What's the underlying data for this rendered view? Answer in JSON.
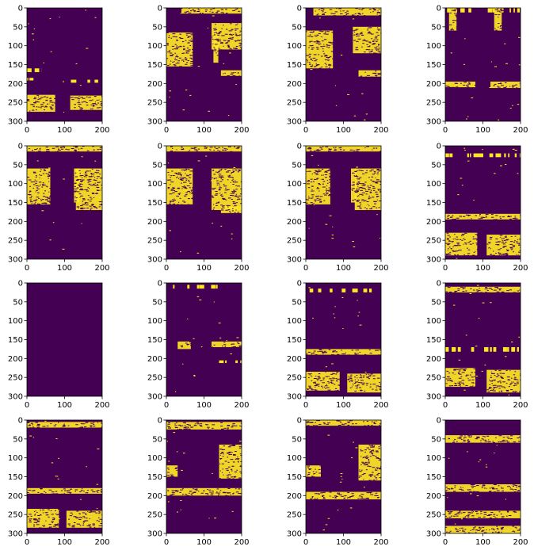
{
  "figure": {
    "background": "#ffffff",
    "colors": {
      "background": "#440154",
      "foreground": "#fde725"
    },
    "colormap": "viridis (binary mask)",
    "layout": "4 rows x 4 columns grid of masks"
  },
  "chart_data": [
    {
      "type": "heatmap",
      "row": 1,
      "col": 1,
      "xlim": [
        0,
        200
      ],
      "ylim": [
        300,
        0
      ],
      "xticks": [
        0,
        100,
        200
      ],
      "yticks": [
        0,
        50,
        100,
        150,
        200,
        250,
        300
      ],
      "mask_regions": [
        {
          "x": [
            0,
            75
          ],
          "y": [
            230,
            275
          ]
        },
        {
          "x": [
            115,
            200
          ],
          "y": [
            232,
            270
          ]
        },
        {
          "x": [
            0,
            40
          ],
          "y": [
            160,
            170
          ]
        },
        {
          "x": [
            0,
            45
          ],
          "y": [
            185,
            192
          ]
        },
        {
          "x": [
            90,
            190
          ],
          "y": [
            190,
            198
          ]
        }
      ]
    },
    {
      "type": "heatmap",
      "row": 1,
      "col": 2,
      "xlim": [
        0,
        200
      ],
      "ylim": [
        300,
        0
      ],
      "xticks": [
        0,
        100,
        200
      ],
      "yticks": [
        0,
        50,
        100,
        150,
        200,
        250,
        300
      ],
      "mask_regions": [
        {
          "x": [
            0,
            70
          ],
          "y": [
            65,
            155
          ]
        },
        {
          "x": [
            40,
            200
          ],
          "y": [
            0,
            15
          ]
        },
        {
          "x": [
            120,
            200
          ],
          "y": [
            40,
            110
          ]
        },
        {
          "x": [
            145,
            200
          ],
          "y": [
            165,
            180
          ]
        },
        {
          "x": [
            125,
            138
          ],
          "y": [
            60,
            145
          ]
        }
      ]
    },
    {
      "type": "heatmap",
      "row": 1,
      "col": 3,
      "xlim": [
        0,
        200
      ],
      "ylim": [
        300,
        0
      ],
      "xticks": [
        0,
        100,
        200
      ],
      "yticks": [
        0,
        50,
        100,
        150,
        200,
        250,
        300
      ],
      "mask_regions": [
        {
          "x": [
            0,
            72
          ],
          "y": [
            60,
            160
          ]
        },
        {
          "x": [
            20,
            200
          ],
          "y": [
            0,
            20
          ]
        },
        {
          "x": [
            125,
            200
          ],
          "y": [
            50,
            120
          ]
        },
        {
          "x": [
            140,
            200
          ],
          "y": [
            165,
            182
          ]
        }
      ]
    },
    {
      "type": "heatmap",
      "row": 1,
      "col": 4,
      "xlim": [
        0,
        200
      ],
      "ylim": [
        300,
        0
      ],
      "xticks": [
        0,
        100,
        200
      ],
      "yticks": [
        0,
        50,
        100,
        150,
        200,
        250,
        300
      ],
      "mask_regions": [
        {
          "x": [
            0,
            200
          ],
          "y": [
            0,
            12
          ]
        },
        {
          "x": [
            10,
            30
          ],
          "y": [
            0,
            60
          ]
        },
        {
          "x": [
            130,
            150
          ],
          "y": [
            0,
            60
          ]
        },
        {
          "x": [
            0,
            80
          ],
          "y": [
            195,
            210
          ]
        },
        {
          "x": [
            120,
            200
          ],
          "y": [
            195,
            212
          ]
        }
      ]
    },
    {
      "type": "heatmap",
      "row": 2,
      "col": 1,
      "xlim": [
        0,
        200
      ],
      "ylim": [
        300,
        0
      ],
      "xticks": [
        0,
        100,
        200
      ],
      "yticks": [
        0,
        50,
        100,
        150,
        200,
        250,
        300
      ],
      "mask_regions": [
        {
          "x": [
            0,
            62
          ],
          "y": [
            60,
            155
          ]
        },
        {
          "x": [
            0,
            200
          ],
          "y": [
            0,
            15
          ]
        },
        {
          "x": [
            130,
            200
          ],
          "y": [
            60,
            170
          ]
        },
        {
          "x": [
            125,
            140
          ],
          "y": [
            60,
            150
          ]
        }
      ]
    },
    {
      "type": "heatmap",
      "row": 2,
      "col": 2,
      "xlim": [
        0,
        200
      ],
      "ylim": [
        300,
        0
      ],
      "xticks": [
        0,
        100,
        200
      ],
      "yticks": [
        0,
        50,
        100,
        150,
        200,
        250,
        300
      ],
      "mask_regions": [
        {
          "x": [
            0,
            70
          ],
          "y": [
            60,
            155
          ]
        },
        {
          "x": [
            0,
            200
          ],
          "y": [
            0,
            15
          ]
        },
        {
          "x": [
            120,
            200
          ],
          "y": [
            60,
            170
          ]
        },
        {
          "x": [
            145,
            200
          ],
          "y": [
            160,
            178
          ]
        }
      ]
    },
    {
      "type": "heatmap",
      "row": 2,
      "col": 3,
      "xlim": [
        0,
        200
      ],
      "ylim": [
        300,
        0
      ],
      "xticks": [
        0,
        100,
        200
      ],
      "yticks": [
        0,
        50,
        100,
        150,
        200,
        250,
        300
      ],
      "mask_regions": [
        {
          "x": [
            0,
            65
          ],
          "y": [
            60,
            155
          ]
        },
        {
          "x": [
            0,
            200
          ],
          "y": [
            0,
            15
          ]
        },
        {
          "x": [
            130,
            200
          ],
          "y": [
            60,
            170
          ]
        },
        {
          "x": [
            120,
            135
          ],
          "y": [
            60,
            150
          ]
        }
      ]
    },
    {
      "type": "heatmap",
      "row": 2,
      "col": 4,
      "xlim": [
        0,
        200
      ],
      "ylim": [
        300,
        0
      ],
      "xticks": [
        0,
        100,
        200
      ],
      "yticks": [
        0,
        50,
        100,
        150,
        200,
        250,
        300
      ],
      "mask_regions": [
        {
          "x": [
            0,
            85
          ],
          "y": [
            230,
            290
          ]
        },
        {
          "x": [
            110,
            200
          ],
          "y": [
            235,
            290
          ]
        },
        {
          "x": [
            0,
            200
          ],
          "y": [
            180,
            195
          ]
        },
        {
          "x": [
            0,
            200
          ],
          "y": [
            20,
            30
          ]
        }
      ]
    },
    {
      "type": "heatmap",
      "row": 3,
      "col": 1,
      "xlim": [
        0,
        200
      ],
      "ylim": [
        300,
        0
      ],
      "xticks": [
        0,
        100,
        200
      ],
      "yticks": [
        0,
        50,
        100,
        150,
        200,
        250,
        300
      ],
      "mask_regions": []
    },
    {
      "type": "heatmap",
      "row": 3,
      "col": 2,
      "xlim": [
        0,
        200
      ],
      "ylim": [
        300,
        0
      ],
      "xticks": [
        0,
        100,
        200
      ],
      "yticks": [
        0,
        50,
        100,
        150,
        200,
        250,
        300
      ],
      "mask_regions": [
        {
          "x": [
            0,
            140
          ],
          "y": [
            5,
            15
          ]
        },
        {
          "x": [
            30,
            65
          ],
          "y": [
            155,
            175
          ]
        },
        {
          "x": [
            120,
            200
          ],
          "y": [
            155,
            170
          ]
        },
        {
          "x": [
            140,
            200
          ],
          "y": [
            205,
            212
          ]
        }
      ]
    },
    {
      "type": "heatmap",
      "row": 3,
      "col": 3,
      "xlim": [
        0,
        200
      ],
      "ylim": [
        300,
        0
      ],
      "xticks": [
        0,
        100,
        200
      ],
      "yticks": [
        0,
        50,
        100,
        150,
        200,
        250,
        300
      ],
      "mask_regions": [
        {
          "x": [
            0,
            90
          ],
          "y": [
            235,
            285
          ]
        },
        {
          "x": [
            110,
            200
          ],
          "y": [
            240,
            290
          ]
        },
        {
          "x": [
            0,
            200
          ],
          "y": [
            175,
            190
          ]
        },
        {
          "x": [
            0,
            200
          ],
          "y": [
            15,
            25
          ]
        }
      ]
    },
    {
      "type": "heatmap",
      "row": 3,
      "col": 4,
      "xlim": [
        0,
        200
      ],
      "ylim": [
        300,
        0
      ],
      "xticks": [
        0,
        100,
        200
      ],
      "yticks": [
        0,
        50,
        100,
        150,
        200,
        250,
        300
      ],
      "mask_regions": [
        {
          "x": [
            0,
            80
          ],
          "y": [
            225,
            275
          ]
        },
        {
          "x": [
            110,
            200
          ],
          "y": [
            230,
            290
          ]
        },
        {
          "x": [
            0,
            200
          ],
          "y": [
            170,
            182
          ]
        },
        {
          "x": [
            0,
            200
          ],
          "y": [
            10,
            25
          ]
        }
      ]
    },
    {
      "type": "heatmap",
      "row": 4,
      "col": 1,
      "xlim": [
        0,
        200
      ],
      "ylim": [
        300,
        0
      ],
      "xticks": [
        0,
        100,
        200
      ],
      "yticks": [
        0,
        50,
        100,
        150,
        200,
        250,
        300
      ],
      "mask_regions": [
        {
          "x": [
            0,
            85
          ],
          "y": [
            235,
            285
          ]
        },
        {
          "x": [
            105,
            200
          ],
          "y": [
            240,
            285
          ]
        },
        {
          "x": [
            0,
            200
          ],
          "y": [
            180,
            195
          ]
        },
        {
          "x": [
            0,
            200
          ],
          "y": [
            5,
            20
          ]
        }
      ]
    },
    {
      "type": "heatmap",
      "row": 4,
      "col": 2,
      "xlim": [
        0,
        200
      ],
      "ylim": [
        300,
        0
      ],
      "xticks": [
        0,
        100,
        200
      ],
      "yticks": [
        0,
        50,
        100,
        150,
        200,
        250,
        300
      ],
      "mask_regions": [
        {
          "x": [
            140,
            200
          ],
          "y": [
            65,
            155
          ]
        },
        {
          "x": [
            0,
            200
          ],
          "y": [
            5,
            25
          ]
        },
        {
          "x": [
            0,
            30
          ],
          "y": [
            120,
            150
          ]
        },
        {
          "x": [
            0,
            200
          ],
          "y": [
            180,
            200
          ]
        }
      ]
    },
    {
      "type": "heatmap",
      "row": 4,
      "col": 3,
      "xlim": [
        0,
        200
      ],
      "ylim": [
        300,
        0
      ],
      "xticks": [
        0,
        100,
        200
      ],
      "yticks": [
        0,
        50,
        100,
        150,
        200,
        250,
        300
      ],
      "mask_regions": [
        {
          "x": [
            140,
            200
          ],
          "y": [
            65,
            160
          ]
        },
        {
          "x": [
            0,
            200
          ],
          "y": [
            0,
            15
          ]
        },
        {
          "x": [
            0,
            40
          ],
          "y": [
            120,
            150
          ]
        },
        {
          "x": [
            0,
            200
          ],
          "y": [
            190,
            210
          ]
        }
      ]
    },
    {
      "type": "heatmap",
      "row": 4,
      "col": 4,
      "xlim": [
        0,
        200
      ],
      "ylim": [
        300,
        0
      ],
      "xticks": [
        0,
        100,
        200
      ],
      "yticks": [
        0,
        50,
        100,
        150,
        200,
        250,
        300
      ],
      "mask_regions": [
        {
          "x": [
            0,
            200
          ],
          "y": [
            280,
            300
          ]
        },
        {
          "x": [
            0,
            200
          ],
          "y": [
            240,
            260
          ]
        },
        {
          "x": [
            0,
            200
          ],
          "y": [
            170,
            190
          ]
        },
        {
          "x": [
            0,
            200
          ],
          "y": [
            40,
            60
          ]
        }
      ]
    }
  ]
}
